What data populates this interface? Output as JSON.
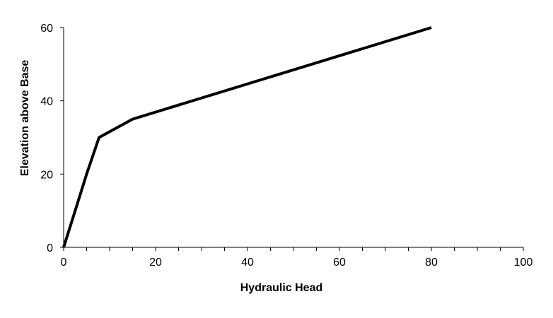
{
  "chart_data": {
    "type": "line",
    "title": "",
    "xlabel": "Hydraulic Head",
    "ylabel": "Elevation above Base",
    "xlim": [
      0,
      100
    ],
    "ylim": [
      0,
      60
    ],
    "x_major_ticks": [
      0,
      20,
      40,
      60,
      80,
      100
    ],
    "x_tick_labels": [
      "0",
      "20",
      "40",
      "60",
      "80",
      "100"
    ],
    "x_minor_step": 5,
    "y_major_ticks": [
      0,
      20,
      40,
      60
    ],
    "y_tick_labels": [
      "0",
      "20",
      "40",
      "60"
    ],
    "grid": false,
    "legend": "none",
    "series": [
      {
        "color": "#000000",
        "points": [
          {
            "x": 0,
            "y": 0
          },
          {
            "x": 2.5,
            "y": 10
          },
          {
            "x": 5,
            "y": 20
          },
          {
            "x": 7.7,
            "y": 30
          },
          {
            "x": 15,
            "y": 35
          },
          {
            "x": 80,
            "y": 60
          }
        ]
      }
    ]
  }
}
